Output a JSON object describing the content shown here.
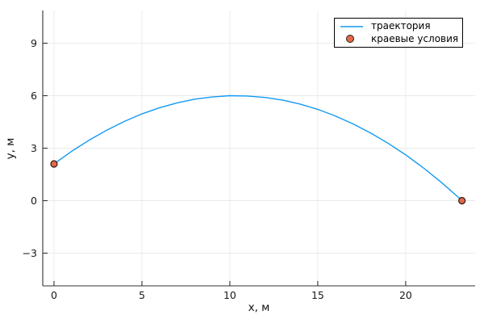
{
  "chart_data": {
    "type": "line",
    "title": "",
    "xlabel": "x, м",
    "ylabel": "y, м",
    "xlim": [
      -0.64,
      23.95
    ],
    "ylim": [
      -4.87,
      10.87
    ],
    "xticks": [
      0,
      5,
      10,
      15,
      20
    ],
    "xticklabels": [
      "0",
      "5",
      "10",
      "15",
      "20"
    ],
    "yticks": [
      -3,
      0,
      3,
      6,
      9
    ],
    "yticklabels": [
      "−3",
      "0",
      "3",
      "6",
      "9"
    ],
    "grid": true,
    "legend_position": "top-right",
    "series": [
      {
        "name": "траектория",
        "type": "line",
        "color": "#149af2",
        "points": [
          [
            0,
            2.1
          ],
          [
            1,
            2.82
          ],
          [
            2,
            3.46
          ],
          [
            3,
            4.03
          ],
          [
            4,
            4.53
          ],
          [
            5,
            4.96
          ],
          [
            6,
            5.31
          ],
          [
            7,
            5.59
          ],
          [
            8,
            5.8
          ],
          [
            9,
            5.93
          ],
          [
            10,
            6.0
          ],
          [
            11,
            5.98
          ],
          [
            12,
            5.9
          ],
          [
            13,
            5.75
          ],
          [
            14,
            5.52
          ],
          [
            15,
            5.22
          ],
          [
            16,
            4.84
          ],
          [
            17,
            4.39
          ],
          [
            18,
            3.87
          ],
          [
            19,
            3.28
          ],
          [
            20,
            2.62
          ],
          [
            21,
            1.88
          ],
          [
            22,
            1.07
          ],
          [
            23,
            0.19
          ],
          [
            23.2,
            0.0
          ]
        ]
      },
      {
        "name": "краевые условия",
        "type": "scatter",
        "color": "#e2694a",
        "stroke_color": "#2e1a10",
        "points": [
          [
            0,
            2.1
          ],
          [
            23.2,
            0.0
          ]
        ]
      }
    ],
    "colors": {
      "spine": "#333333",
      "grid": "#e9e9e9",
      "tick_label": "#1a1a1a"
    }
  }
}
